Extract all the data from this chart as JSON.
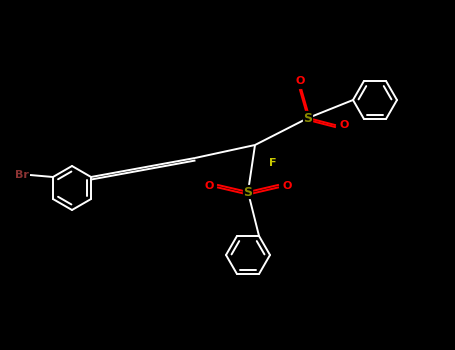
{
  "bg_color": "#000000",
  "bond_color": "#ffffff",
  "atom_colors": {
    "Br": "#8b3333",
    "F": "#c8c800",
    "S": "#8b8b00",
    "O": "#ff0000"
  },
  "figsize": [
    4.55,
    3.5
  ],
  "dpi": 100,
  "scale": 1.0,
  "ring_r": 22,
  "lw": 1.4
}
